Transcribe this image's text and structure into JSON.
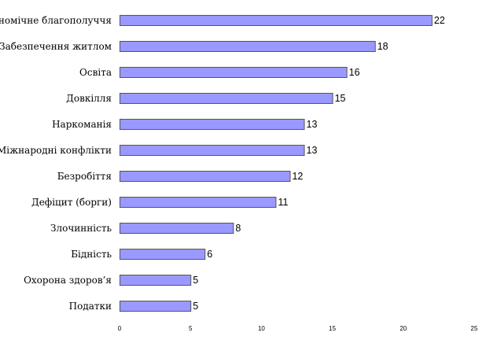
{
  "chart_data": {
    "type": "bar",
    "orientation": "horizontal",
    "title": "",
    "xlabel": "",
    "ylabel": "",
    "categories": [
      "Економічне благополуччя",
      "Забезпечення житлом",
      "Освіта",
      "Довкілля",
      "Наркоманія",
      "Міжнародні конфлікти",
      "Безробіття",
      "Дефіцит (борги)",
      "Злочинність",
      "Бідність",
      "Охорона здоров’я",
      "Податки"
    ],
    "values": [
      22,
      18,
      16,
      15,
      13,
      13,
      12,
      11,
      8,
      6,
      5,
      5
    ],
    "xlim": [
      0,
      25
    ],
    "xticks": [
      "0",
      "5",
      "10",
      "15",
      "20",
      "25"
    ],
    "grid": false,
    "legend": "none",
    "colors": {
      "bar_fill": "#9999ff",
      "bar_stroke": "#555555"
    }
  }
}
